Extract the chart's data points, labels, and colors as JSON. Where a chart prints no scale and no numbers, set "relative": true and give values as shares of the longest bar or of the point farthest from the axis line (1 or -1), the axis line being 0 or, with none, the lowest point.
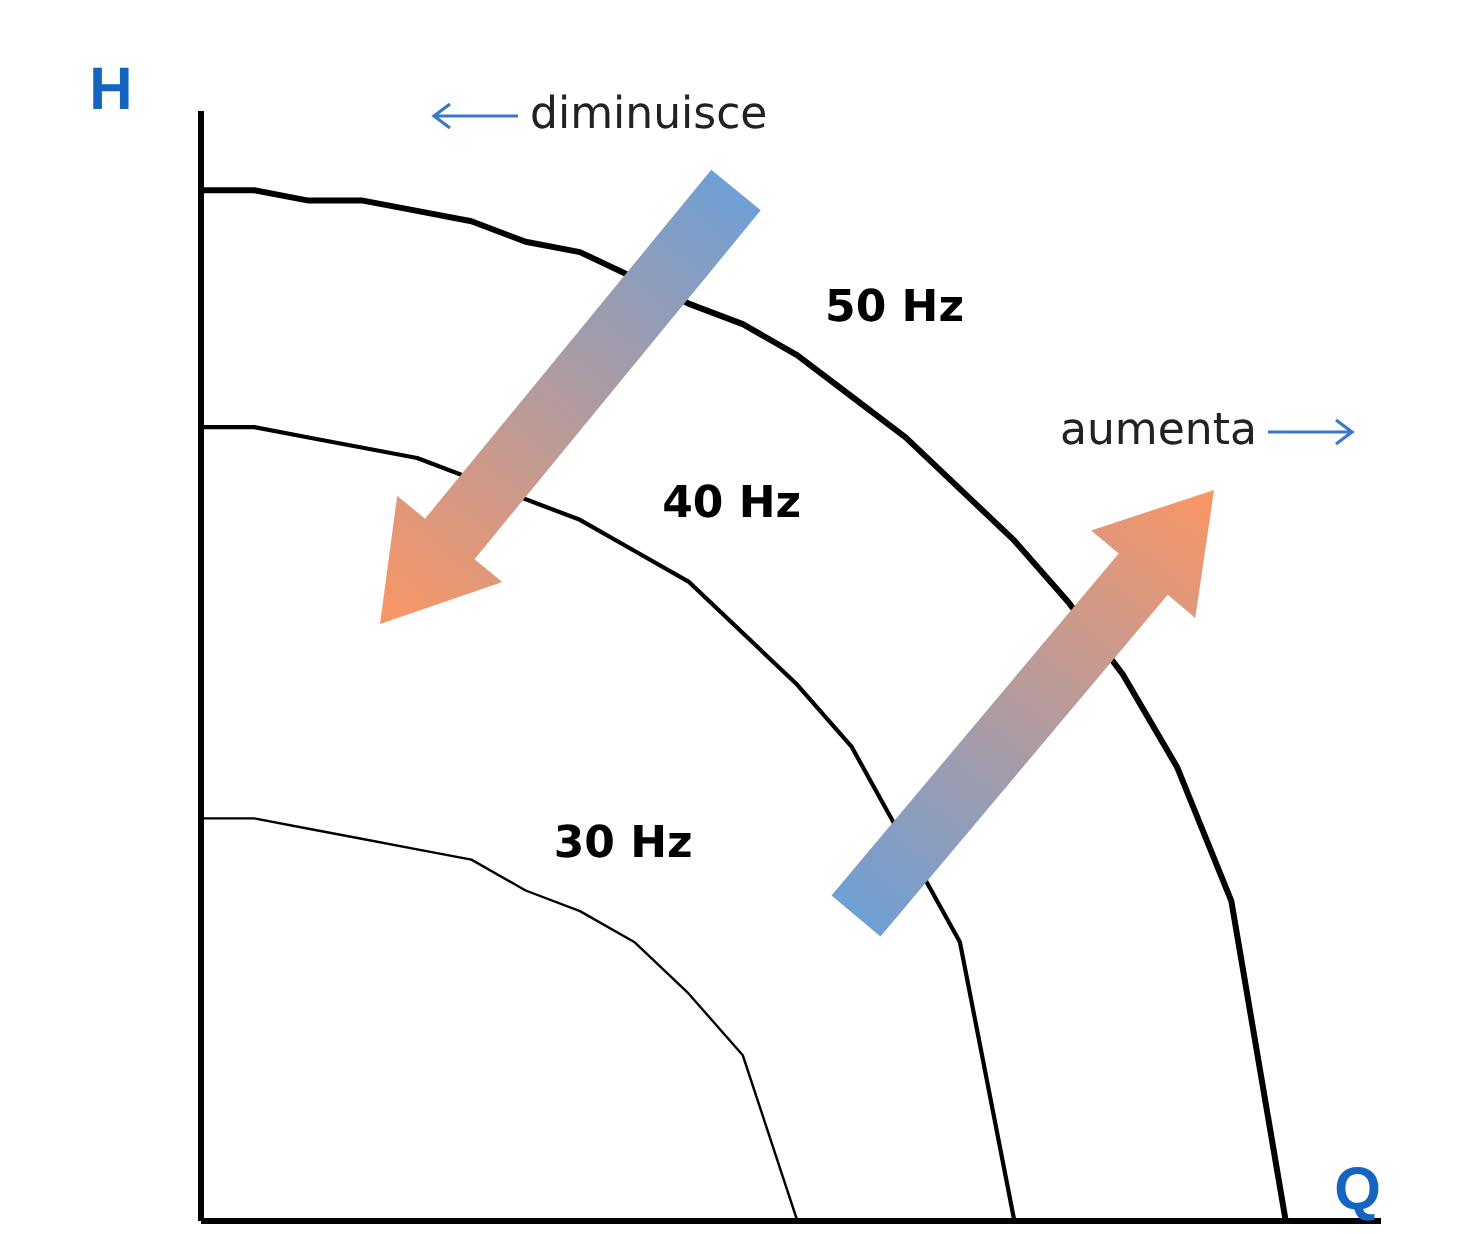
{
  "chart_data": {
    "type": "line",
    "relative": true,
    "xlabel": "Q",
    "ylabel": "H",
    "grid": false,
    "legend": false,
    "categories": [
      null,
      null,
      null,
      null,
      null,
      null,
      null,
      null,
      null,
      null,
      null,
      null,
      null,
      null,
      null,
      null,
      null,
      null,
      null,
      null,
      null
    ],
    "series": [
      {
        "name": "50 Hz",
        "color": "#000000",
        "values": [
          1,
          1,
          0.99,
          0.99,
          0.98,
          0.97,
          0.95,
          0.94,
          null,
          0.89,
          0.87,
          0.84,
          0.8,
          0.76,
          0.71,
          0.66,
          0.6,
          0.53,
          0.44,
          0.31,
          0
        ]
      },
      {
        "name": "40 Hz",
        "color": "#000000",
        "values": [
          0.77,
          0.77,
          0.76,
          0.75,
          0.74,
          null,
          null,
          0.68,
          0.65,
          0.62,
          0.57,
          0.52,
          0.46,
          null,
          0.27,
          0,
          null,
          null,
          null,
          null,
          null
        ]
      },
      {
        "name": "30 Hz",
        "color": "#000000",
        "values": [
          0.39,
          0.39,
          0.38,
          0.37,
          0.36,
          0.35,
          0.32,
          0.3,
          0.27,
          0.22,
          0.16,
          0,
          null,
          null,
          null,
          null,
          null,
          null,
          null,
          null,
          null
        ]
      }
    ],
    "annotations": [
      "diminuisce",
      "aumenta"
    ]
  }
}
